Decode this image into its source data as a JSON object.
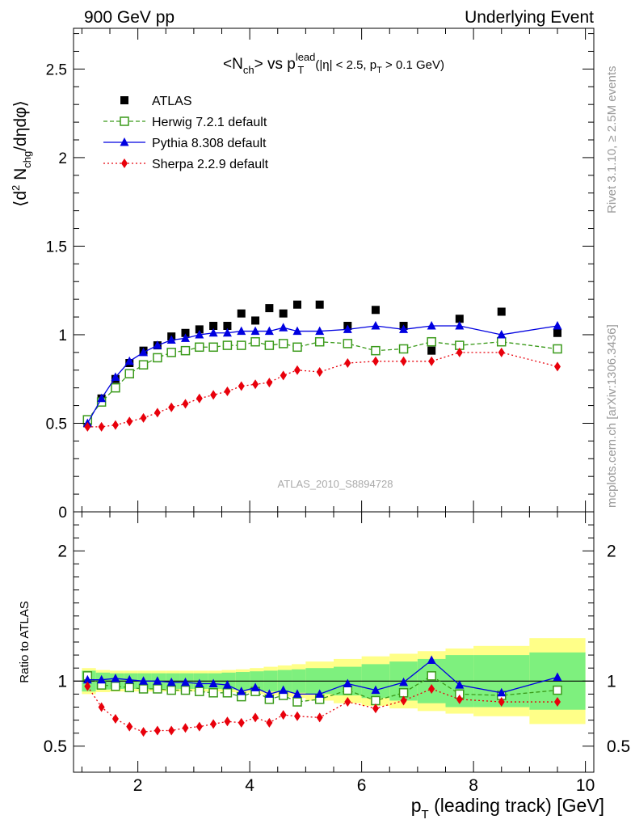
{
  "header": {
    "left": "900 GeV pp",
    "right": "Underlying Event"
  },
  "side_text": {
    "rivet": "Rivet 3.1.10, ≥ 2.5M events",
    "mcplots": "mcplots.cern.ch [arXiv:1306.3436]"
  },
  "watermark": "ATLAS_2010_S8894728",
  "title": {
    "pre": "<N",
    "sub1": "ch",
    "mid": "> vs p",
    "sup": "lead",
    "sub2": "T",
    "cuts_pre": "(|η| < 2.5, p",
    "cuts_sub": "T",
    "cuts_post": " > 0.1 GeV)"
  },
  "ylabel_top": {
    "pre": "⟨d",
    "sup": "2",
    "mid": " N",
    "sub": "chg",
    "post": "/dηdφ⟩"
  },
  "ylabel_bottom": "Ratio to ATLAS",
  "xlabel": {
    "pre": "p",
    "sub": "T",
    "post": " (leading track) [GeV]"
  },
  "colors": {
    "atlas": "#000000",
    "herwig": "#3a9a1a",
    "pythia": "#0000e0",
    "sherpa": "#e8000b",
    "band_green": "#7ef07e",
    "band_yellow": "#ffff88"
  },
  "chart_data": [
    {
      "type": "scatter",
      "panel": "main",
      "xlim": [
        0.85,
        10.15
      ],
      "ylim": [
        0,
        2.73
      ],
      "x_ticks": [
        2,
        4,
        6,
        8,
        10
      ],
      "y_ticks": [
        0,
        0.5,
        1,
        1.5,
        2,
        2.5
      ],
      "y_tick_labels": [
        "0",
        "0.5",
        "1",
        "1.5",
        "2",
        "2.5"
      ],
      "x": [
        1.1,
        1.35,
        1.6,
        1.85,
        2.1,
        2.35,
        2.6,
        2.85,
        3.1,
        3.35,
        3.6,
        3.85,
        4.1,
        4.35,
        4.6,
        4.85,
        5.25,
        5.75,
        6.25,
        6.75,
        7.25,
        7.75,
        8.5,
        9.5
      ],
      "series": [
        {
          "name": "ATLAS",
          "marker": "filled-square",
          "values": [
            0.5,
            0.64,
            0.75,
            0.84,
            0.91,
            0.94,
            0.99,
            1.01,
            1.03,
            1.05,
            1.05,
            1.12,
            1.08,
            1.15,
            1.12,
            1.17,
            1.17,
            1.05,
            1.14,
            1.05,
            0.91,
            1.09,
            1.13,
            1.01
          ]
        },
        {
          "name": "Herwig 7.2.1 default",
          "marker": "open-square",
          "line": "dashed",
          "values": [
            0.52,
            0.62,
            0.7,
            0.78,
            0.83,
            0.87,
            0.9,
            0.91,
            0.93,
            0.93,
            0.94,
            0.94,
            0.96,
            0.94,
            0.95,
            0.93,
            0.96,
            0.95,
            0.91,
            0.92,
            0.96,
            0.94,
            0.96,
            0.92
          ]
        },
        {
          "name": "Pythia 8.308 default",
          "marker": "filled-triangle",
          "line": "solid",
          "values": [
            0.5,
            0.64,
            0.76,
            0.85,
            0.9,
            0.94,
            0.97,
            0.98,
            1.0,
            1.01,
            1.01,
            1.02,
            1.02,
            1.02,
            1.04,
            1.02,
            1.02,
            1.03,
            1.05,
            1.03,
            1.05,
            1.05,
            1.0,
            1.05
          ]
        },
        {
          "name": "Sherpa 2.2.9 default",
          "marker": "filled-diamond",
          "line": "dotted",
          "values": [
            0.48,
            0.48,
            0.49,
            0.51,
            0.53,
            0.56,
            0.59,
            0.61,
            0.64,
            0.66,
            0.68,
            0.71,
            0.72,
            0.73,
            0.77,
            0.8,
            0.79,
            0.84,
            0.85,
            0.85,
            0.85,
            0.9,
            0.9,
            0.82
          ]
        }
      ]
    },
    {
      "type": "line",
      "panel": "ratio",
      "xlim": [
        0.85,
        10.15
      ],
      "ylim": [
        0.3,
        2.3
      ],
      "x_ticks": [
        2,
        4,
        6,
        8,
        10
      ],
      "y_ticks": [
        0.5,
        1,
        2
      ],
      "y_tick_labels": [
        "0.5",
        "1",
        "2"
      ],
      "reference": 1,
      "x": [
        1.1,
        1.35,
        1.6,
        1.85,
        2.1,
        2.35,
        2.6,
        2.85,
        3.1,
        3.35,
        3.6,
        3.85,
        4.1,
        4.35,
        4.6,
        4.85,
        5.25,
        5.75,
        6.25,
        6.75,
        7.25,
        7.75,
        8.5,
        9.5
      ],
      "band_edges": [
        1.0,
        1.25,
        1.5,
        1.75,
        2.0,
        2.25,
        2.5,
        2.75,
        3.0,
        3.25,
        3.5,
        3.75,
        4.0,
        4.25,
        4.5,
        4.75,
        5.0,
        5.5,
        6.0,
        6.5,
        7.0,
        7.5,
        8.0,
        9.0,
        10.0
      ],
      "band_green": [
        0.08,
        0.065,
        0.06,
        0.06,
        0.06,
        0.06,
        0.06,
        0.06,
        0.06,
        0.06,
        0.065,
        0.07,
        0.075,
        0.08,
        0.085,
        0.09,
        0.1,
        0.11,
        0.13,
        0.15,
        0.17,
        0.2,
        0.2,
        0.22
      ],
      "band_yellow": [
        0.1,
        0.085,
        0.08,
        0.08,
        0.08,
        0.08,
        0.08,
        0.08,
        0.08,
        0.08,
        0.085,
        0.09,
        0.1,
        0.11,
        0.12,
        0.13,
        0.15,
        0.17,
        0.19,
        0.21,
        0.23,
        0.25,
        0.27,
        0.33
      ],
      "series": [
        {
          "name": "Herwig 7.2.1 default",
          "values": [
            1.04,
            0.97,
            0.96,
            0.95,
            0.94,
            0.94,
            0.93,
            0.93,
            0.92,
            0.91,
            0.91,
            0.88,
            0.92,
            0.86,
            0.89,
            0.84,
            0.86,
            0.93,
            0.85,
            0.91,
            1.04,
            0.9,
            0.89,
            0.93
          ]
        },
        {
          "name": "Pythia 8.308 default",
          "values": [
            1.01,
            1.01,
            1.02,
            1.01,
            1.0,
            1.0,
            0.99,
            0.99,
            0.98,
            0.98,
            0.97,
            0.92,
            0.95,
            0.9,
            0.93,
            0.9,
            0.9,
            0.98,
            0.93,
            0.99,
            1.16,
            0.97,
            0.91,
            1.03
          ]
        },
        {
          "name": "Sherpa 2.2.9 default",
          "values": [
            0.96,
            0.8,
            0.71,
            0.65,
            0.61,
            0.62,
            0.62,
            0.64,
            0.65,
            0.67,
            0.69,
            0.68,
            0.72,
            0.68,
            0.74,
            0.73,
            0.72,
            0.84,
            0.79,
            0.85,
            0.94,
            0.86,
            0.84,
            0.84
          ]
        }
      ]
    }
  ]
}
